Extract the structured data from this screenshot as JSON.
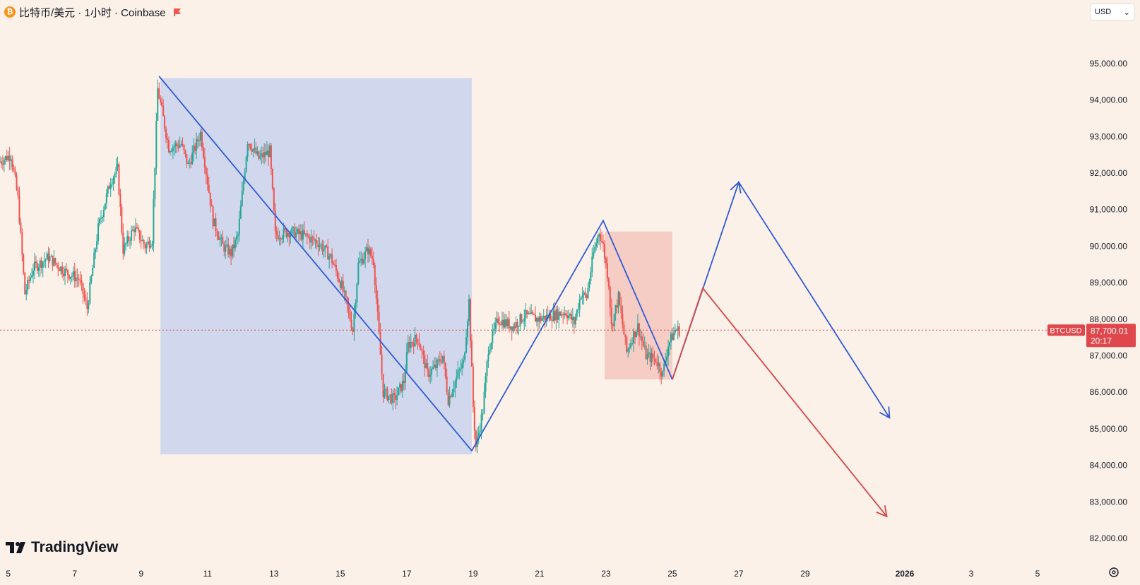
{
  "header": {
    "symbol_title": "比特币/美元 · 1小时 · Coinbase",
    "btc_glyph": "₿",
    "icons": [
      "bitcoin-icon",
      "flag-icon"
    ]
  },
  "currency": {
    "label": "USD"
  },
  "logo": {
    "text": "TradingView"
  },
  "colors": {
    "background": "#fbf1e8",
    "up": "#26a69a",
    "down": "#ef5350",
    "blue_line": "#2f5bd6",
    "red_line": "#d94545",
    "blue_box": "#cfd5ec",
    "red_box": "#f4c9c1",
    "price_label": "#e0474c"
  },
  "price_tag": {
    "symbol": "BTCUSD",
    "price": "87,700.01",
    "countdown": "20:17"
  },
  "chart_data": {
    "type": "candlestick",
    "symbol": "BTCUSD",
    "interval": "1h",
    "ylim": [
      81700,
      95600
    ],
    "y_ticks": [
      82000,
      83000,
      84000,
      85000,
      86000,
      87000,
      88000,
      89000,
      90000,
      91000,
      92000,
      93000,
      94000,
      95000
    ],
    "y_tick_labels": [
      "82,000.00",
      "83,000.00",
      "84,000.00",
      "85,000.00",
      "86,000.00",
      "87,000.00",
      "88,000.00",
      "89,000.00",
      "90,000.00",
      "91,000.00",
      "92,000.00",
      "93,000.00",
      "94,000.00",
      "95,000.00"
    ],
    "x_range": [
      "2025-12-04T18:00",
      "2026-01-06T00:00"
    ],
    "x_ticks": [
      {
        "date": "2025-12-05",
        "label": "5"
      },
      {
        "date": "2025-12-07",
        "label": "7"
      },
      {
        "date": "2025-12-09",
        "label": "9"
      },
      {
        "date": "2025-12-11",
        "label": "11"
      },
      {
        "date": "2025-12-13",
        "label": "13"
      },
      {
        "date": "2025-12-15",
        "label": "15"
      },
      {
        "date": "2025-12-17",
        "label": "17"
      },
      {
        "date": "2025-12-19",
        "label": "19"
      },
      {
        "date": "2025-12-21",
        "label": "21"
      },
      {
        "date": "2025-12-23",
        "label": "23"
      },
      {
        "date": "2025-12-25",
        "label": "25"
      },
      {
        "date": "2025-12-27",
        "label": "27"
      },
      {
        "date": "2025-12-29",
        "label": "29"
      },
      {
        "date": "2026-01-01",
        "label": "2026"
      },
      {
        "date": "2026-01-03",
        "label": "3"
      },
      {
        "date": "2026-01-05",
        "label": "5"
      }
    ],
    "current_price": 87700.01,
    "price_path": [
      [
        "2025-12-04T18:00",
        92300
      ],
      [
        "2025-12-05T03:00",
        92500
      ],
      [
        "2025-12-05T08:00",
        91300
      ],
      [
        "2025-12-05T13:00",
        88700
      ],
      [
        "2025-12-05T19:00",
        89400
      ],
      [
        "2025-12-06T06:00",
        89700
      ],
      [
        "2025-12-06T18:00",
        89300
      ],
      [
        "2025-12-07T04:00",
        89100
      ],
      [
        "2025-12-07T10:00",
        88300
      ],
      [
        "2025-12-07T18:00",
        90500
      ],
      [
        "2025-12-08T03:00",
        91800
      ],
      [
        "2025-12-08T08:00",
        92100
      ],
      [
        "2025-12-08T12:00",
        89900
      ],
      [
        "2025-12-08T20:00",
        90500
      ],
      [
        "2025-12-09T04:00",
        90000
      ],
      [
        "2025-12-09T09:00",
        90200
      ],
      [
        "2025-12-09T13:00",
        94300
      ],
      [
        "2025-12-09T21:00",
        92700
      ],
      [
        "2025-12-10T06:00",
        92800
      ],
      [
        "2025-12-10T11:00",
        92200
      ],
      [
        "2025-12-10T20:00",
        93100
      ],
      [
        "2025-12-11T05:00",
        90700
      ],
      [
        "2025-12-11T12:00",
        90000
      ],
      [
        "2025-12-11T18:00",
        89800
      ],
      [
        "2025-12-11T23:00",
        90300
      ],
      [
        "2025-12-12T06:00",
        92900
      ],
      [
        "2025-12-12T14:00",
        92400
      ],
      [
        "2025-12-12T22:00",
        92600
      ],
      [
        "2025-12-13T02:00",
        90300
      ],
      [
        "2025-12-13T12:00",
        90400
      ],
      [
        "2025-12-13T22:00",
        90300
      ],
      [
        "2025-12-14T09:00",
        90100
      ],
      [
        "2025-12-14T18:00",
        89700
      ],
      [
        "2025-12-15T02:00",
        88900
      ],
      [
        "2025-12-15T07:00",
        88200
      ],
      [
        "2025-12-15T10:00",
        87700
      ],
      [
        "2025-12-15T14:00",
        89500
      ],
      [
        "2025-12-15T21:00",
        89900
      ],
      [
        "2025-12-16T01:00",
        89600
      ],
      [
        "2025-12-16T08:00",
        86000
      ],
      [
        "2025-12-16T16:00",
        85800
      ],
      [
        "2025-12-16T23:00",
        86300
      ],
      [
        "2025-12-17T02:00",
        87300
      ],
      [
        "2025-12-17T09:00",
        87500
      ],
      [
        "2025-12-17T16:00",
        86500
      ],
      [
        "2025-12-17T22:00",
        86700
      ],
      [
        "2025-12-18T03:00",
        87000
      ],
      [
        "2025-12-18T07:00",
        85800
      ],
      [
        "2025-12-18T14:00",
        86500
      ],
      [
        "2025-12-18T18:00",
        86800
      ],
      [
        "2025-12-18T22:00",
        88500
      ],
      [
        "2025-12-19T01:00",
        85600
      ],
      [
        "2025-12-19T03:00",
        84500
      ],
      [
        "2025-12-19T08:00",
        85500
      ],
      [
        "2025-12-19T12:00",
        87200
      ],
      [
        "2025-12-19T19:00",
        88000
      ],
      [
        "2025-12-20T06:00",
        87800
      ],
      [
        "2025-12-20T14:00",
        88100
      ],
      [
        "2025-12-21T00:00",
        88000
      ],
      [
        "2025-12-21T10:00",
        88100
      ],
      [
        "2025-12-21T20:00",
        88200
      ],
      [
        "2025-12-22T02:00",
        87900
      ],
      [
        "2025-12-22T07:00",
        88700
      ],
      [
        "2025-12-22T11:00",
        88600
      ],
      [
        "2025-12-22T16:00",
        89800
      ],
      [
        "2025-12-22T20:00",
        90400
      ],
      [
        "2025-12-22T23:00",
        90000
      ],
      [
        "2025-12-23T03:00",
        89000
      ],
      [
        "2025-12-23T05:00",
        87800
      ],
      [
        "2025-12-23T10:00",
        88600
      ],
      [
        "2025-12-23T16:00",
        87100
      ],
      [
        "2025-12-23T20:00",
        87500
      ],
      [
        "2025-12-24T00:00",
        87800
      ],
      [
        "2025-12-24T06:00",
        87000
      ],
      [
        "2025-12-24T13:00",
        86900
      ],
      [
        "2025-12-24T18:00",
        86500
      ],
      [
        "2025-12-24T22:00",
        87300
      ],
      [
        "2025-12-25T03:00",
        87700
      ],
      [
        "2025-12-25T06:00",
        87700
      ]
    ],
    "annotations": [
      {
        "type": "rectangle",
        "color": "blue",
        "from": [
          "2025-12-09T14:00",
          94600
        ],
        "to": [
          "2025-12-18T23:00",
          84300
        ]
      },
      {
        "type": "rectangle",
        "color": "red",
        "from": [
          "2025-12-22T23:00",
          90400
        ],
        "to": [
          "2025-12-25T00:00",
          86350
        ]
      },
      {
        "type": "polyline",
        "color": "blue",
        "points": [
          [
            "2025-12-09T13:00",
            94650
          ],
          [
            "2025-12-18T23:00",
            84400
          ],
          [
            "2025-12-22T22:00",
            90700
          ],
          [
            "2025-12-25T00:00",
            86350
          ]
        ]
      },
      {
        "type": "arrow",
        "color": "blue",
        "points": [
          [
            "2025-12-25T00:00",
            86350
          ],
          [
            "2025-12-27T00:00",
            91750
          ],
          [
            "2025-12-31T13:00",
            85300
          ]
        ]
      },
      {
        "type": "arrow",
        "color": "red",
        "points": [
          [
            "2025-12-25T00:00",
            86350
          ],
          [
            "2025-12-25T22:00",
            88850
          ],
          [
            "2025-12-31T11:00",
            82600
          ]
        ]
      }
    ]
  }
}
